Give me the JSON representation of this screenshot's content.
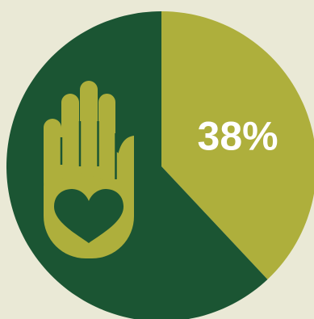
{
  "colors": {
    "background": "#eae9d6",
    "primary_slice": "#aeaf3c",
    "remainder_slice": "#1b5533"
  },
  "chart_data": {
    "type": "pie",
    "slices": [
      {
        "value": 38,
        "label": "38%",
        "color": "#aeaf3c"
      },
      {
        "value": 62,
        "label": "",
        "color": "#1b5533"
      }
    ],
    "start_angle_deg": 0,
    "direction": "clockwise",
    "icon": "hand-with-heart-icon"
  }
}
